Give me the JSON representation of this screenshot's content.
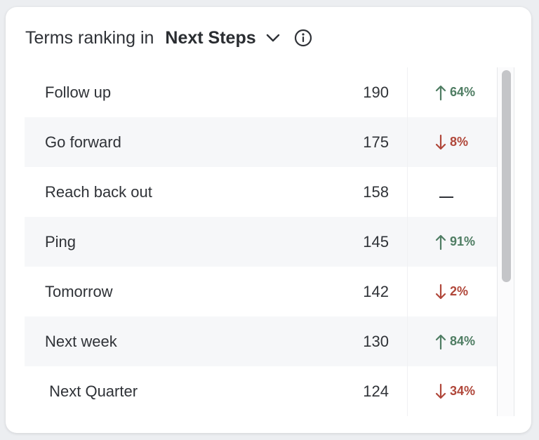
{
  "header": {
    "prefix": "Terms ranking in",
    "selected_category": "Next Steps"
  },
  "rows": [
    {
      "term": "Follow up",
      "count": "190",
      "direction": "up",
      "change": "64%"
    },
    {
      "term": "Go forward",
      "count": "175",
      "direction": "down",
      "change": "8%"
    },
    {
      "term": "Reach back out",
      "count": "158",
      "direction": "flat",
      "change": ""
    },
    {
      "term": "Ping",
      "count": "145",
      "direction": "up",
      "change": "91%"
    },
    {
      "term": "Tomorrow",
      "count": "142",
      "direction": "down",
      "change": "2%"
    },
    {
      "term": "Next week",
      "count": "130",
      "direction": "up",
      "change": "84%"
    },
    {
      "term": " Next Quarter",
      "count": "124",
      "direction": "down",
      "change": "34%"
    }
  ],
  "colors": {
    "up": "#4f7d63",
    "down": "#b0473a",
    "alt_row": "#f6f7f9"
  },
  "icons": {
    "dropdown": "chevron-down-icon",
    "info": "info-icon",
    "up": "arrow-up-icon",
    "down": "arrow-down-icon",
    "flat": "dash-icon"
  }
}
